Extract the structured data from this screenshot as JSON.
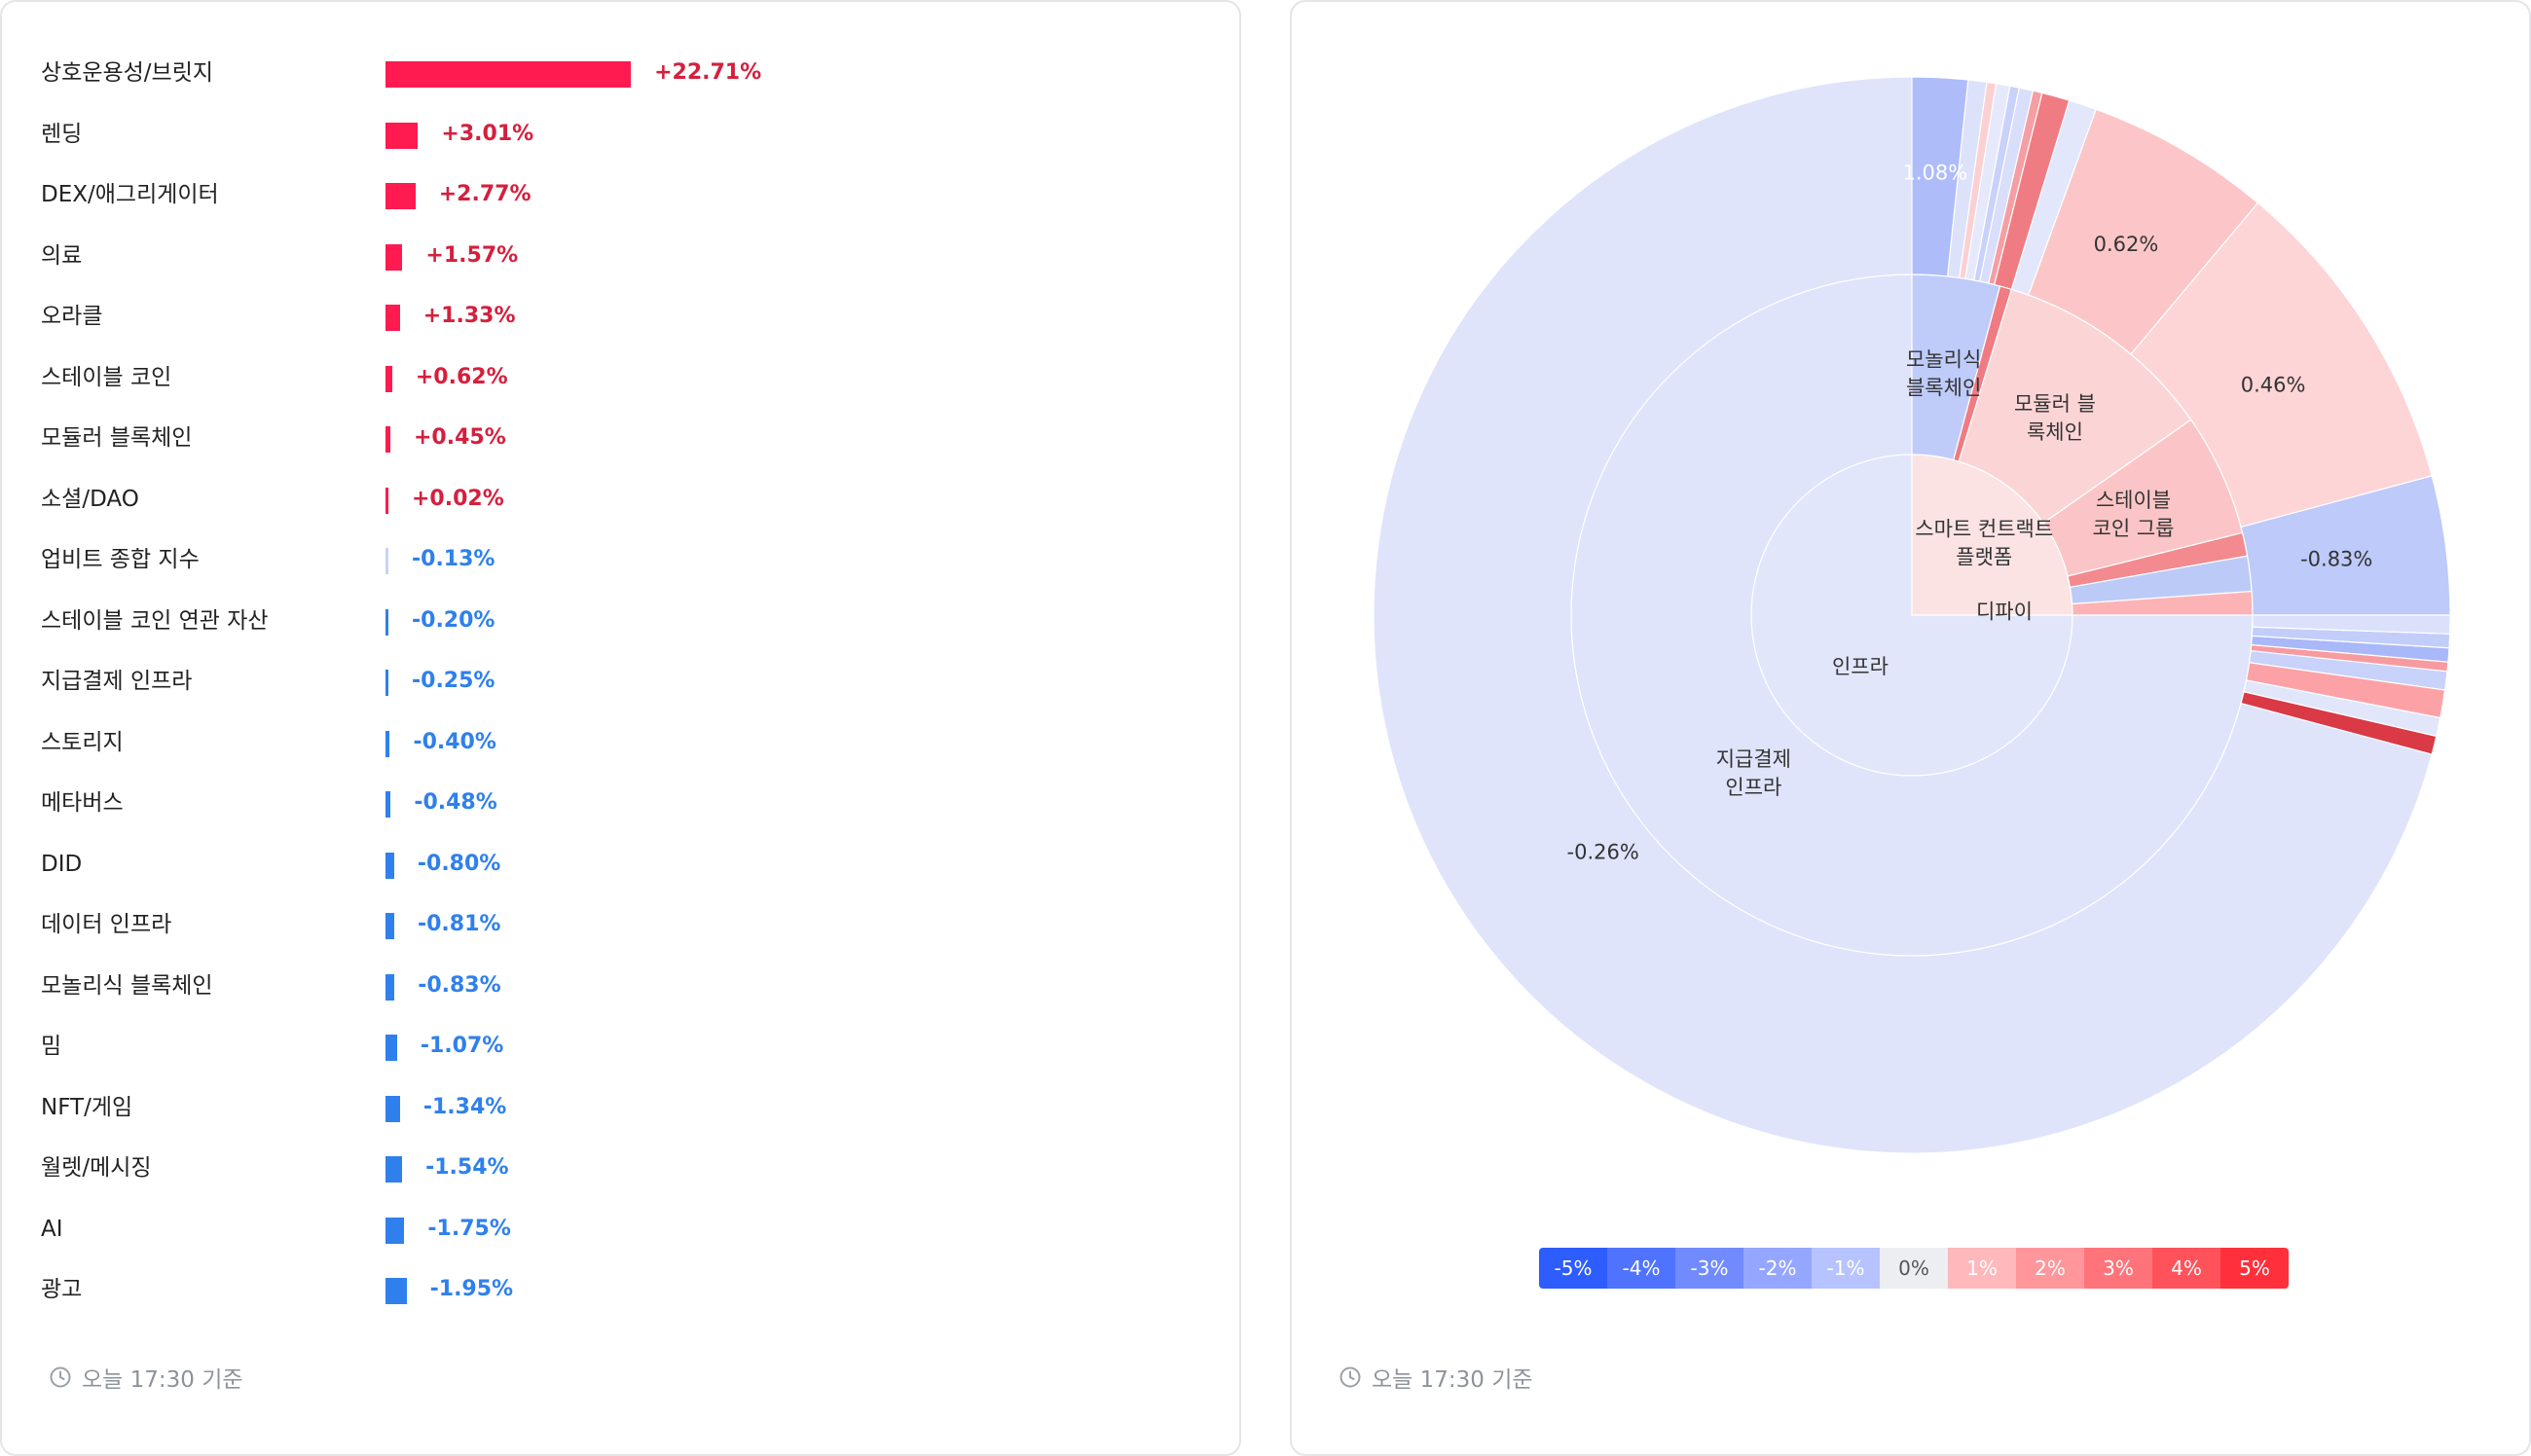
{
  "bars": [
    {
      "label": "상호운용성/브릿지",
      "value": 22.71,
      "text": "+22.71%"
    },
    {
      "label": "렌딩",
      "value": 3.01,
      "text": "+3.01%"
    },
    {
      "label": "DEX/애그리게이터",
      "value": 2.77,
      "text": "+2.77%"
    },
    {
      "label": "의료",
      "value": 1.57,
      "text": "+1.57%"
    },
    {
      "label": "오라클",
      "value": 1.33,
      "text": "+1.33%"
    },
    {
      "label": "스테이블 코인",
      "value": 0.62,
      "text": "+0.62%"
    },
    {
      "label": "모듈러 블록체인",
      "value": 0.45,
      "text": "+0.45%"
    },
    {
      "label": "소셜/DAO",
      "value": 0.02,
      "text": "+0.02%"
    },
    {
      "label": "업비트 종합 지수",
      "value": -0.13,
      "text": "-0.13%"
    },
    {
      "label": "스테이블 코인 연관 자산",
      "value": -0.2,
      "text": "-0.20%"
    },
    {
      "label": "지급결제 인프라",
      "value": -0.25,
      "text": "-0.25%"
    },
    {
      "label": "스토리지",
      "value": -0.4,
      "text": "-0.40%"
    },
    {
      "label": "메타버스",
      "value": -0.48,
      "text": "-0.48%"
    },
    {
      "label": "DID",
      "value": -0.8,
      "text": "-0.80%"
    },
    {
      "label": "데이터 인프라",
      "value": -0.81,
      "text": "-0.81%"
    },
    {
      "label": "모놀리식 블록체인",
      "value": -0.83,
      "text": "-0.83%"
    },
    {
      "label": "밈",
      "value": -1.07,
      "text": "-1.07%"
    },
    {
      "label": "NFT/게임",
      "value": -1.34,
      "text": "-1.34%"
    },
    {
      "label": "월렛/메시징",
      "value": -1.54,
      "text": "-1.54%"
    },
    {
      "label": "AI",
      "value": -1.75,
      "text": "-1.75%"
    },
    {
      "label": "광고",
      "value": -1.95,
      "text": "-1.95%"
    }
  ],
  "colors": {
    "positive_bar": "#ff1a4f",
    "positive_text": "#d61f3d",
    "negative_bar": "#2f80ed",
    "negative_text": "#2f80ed",
    "small_negative_bar": "#c8d4f5"
  },
  "left_footer": "오늘 17:30 기준",
  "right_footer": "오늘 17:30 기준",
  "legend": [
    {
      "label": "-5%",
      "color": "#2d5cff",
      "text_color": "#ffffff"
    },
    {
      "label": "-4%",
      "color": "#4f73ff",
      "text_color": "#ffffff"
    },
    {
      "label": "-3%",
      "color": "#718bff",
      "text_color": "#ffffff"
    },
    {
      "label": "-2%",
      "color": "#94a6ff",
      "text_color": "#ffffff"
    },
    {
      "label": "-1%",
      "color": "#b7c3ff",
      "text_color": "#ffffff"
    },
    {
      "label": "0%",
      "color": "#eceef2",
      "text_color": "#555555"
    },
    {
      "label": "1%",
      "color": "#ffb8bc",
      "text_color": "#ffffff"
    },
    {
      "label": "2%",
      "color": "#ff969c",
      "text_color": "#ffffff"
    },
    {
      "label": "3%",
      "color": "#ff747b",
      "text_color": "#ffffff"
    },
    {
      "label": "4%",
      "color": "#ff525b",
      "text_color": "#ffffff"
    },
    {
      "label": "5%",
      "color": "#ff303b",
      "text_color": "#ffffff"
    }
  ],
  "chart_data": [
    {
      "type": "bar",
      "categories": [
        "상호운용성/브릿지",
        "렌딩",
        "DEX/애그리게이터",
        "의료",
        "오라클",
        "스테이블 코인",
        "모듈러 블록체인",
        "소셜/DAO",
        "업비트 종합 지수",
        "스테이블 코인 연관 자산",
        "지급결제 인프라",
        "스토리지",
        "메타버스",
        "DID",
        "데이터 인프라",
        "모놀리식 블록체인",
        "밈",
        "NFT/게임",
        "월렛/메시징",
        "AI",
        "광고"
      ],
      "values": [
        22.71,
        3.01,
        2.77,
        1.57,
        1.33,
        0.62,
        0.45,
        0.02,
        -0.13,
        -0.2,
        -0.25,
        -0.4,
        -0.48,
        -0.8,
        -0.81,
        -0.83,
        -1.07,
        -1.34,
        -1.54,
        -1.75,
        -1.95
      ],
      "orientation": "horizontal"
    },
    {
      "type": "sunburst",
      "inner": [
        {
          "label": "인프라",
          "start": 90,
          "end": 360,
          "color": "#e2e6fb"
        },
        {
          "label": "스마트 컨트랙트\n플랫폼",
          "start": 0,
          "end": 90,
          "color": "#fbe3e4"
        }
      ],
      "middle": [
        {
          "label": "지급결제\n인프라",
          "start": 90,
          "end": 360,
          "color": "#dfe4fb"
        },
        {
          "label": "모놀리식\n블록체인",
          "start": 0,
          "end": 15,
          "color": "#bfccfa"
        },
        {
          "label": "",
          "start": 15,
          "end": 17,
          "color": "#f07b82"
        },
        {
          "label": "모듈러 블\n록체인",
          "start": 17,
          "end": 55,
          "color": "#fbd5d6"
        },
        {
          "label": "스테이블\n코인 그룹",
          "start": 55,
          "end": 76,
          "color": "#fbc5c7"
        },
        {
          "label": "",
          "start": 76,
          "end": 80,
          "color": "#f28a8f"
        },
        {
          "label": "",
          "start": 80,
          "end": 86,
          "color": "#bccaf8"
        },
        {
          "label": "디파이",
          "start": 86,
          "end": 90,
          "color": "#fdb3b5"
        }
      ],
      "outer": [
        {
          "label": "-0.26%",
          "start": 105,
          "end": 360,
          "color": "#dfe4fb"
        },
        {
          "label": "",
          "start": 103,
          "end": 105,
          "color": "#d93a45"
        },
        {
          "label": "",
          "start": 101,
          "end": 103,
          "color": "#e2e6fb"
        },
        {
          "label": "",
          "start": 98,
          "end": 101,
          "color": "#fca2a6"
        },
        {
          "label": "",
          "start": 96,
          "end": 98,
          "color": "#c8d2fa"
        },
        {
          "label": "",
          "start": 95,
          "end": 96,
          "color": "#f69ba0"
        },
        {
          "label": "",
          "start": 93.5,
          "end": 95,
          "color": "#a9b8f8"
        },
        {
          "label": "",
          "start": 92,
          "end": 93.5,
          "color": "#c2cdfa"
        },
        {
          "label": "",
          "start": 90,
          "end": 92,
          "color": "#dbe1fb"
        },
        {
          "label": "-0.83%",
          "start": 75,
          "end": 90,
          "color": "#bdcafa"
        },
        {
          "label": "0.46%",
          "start": 40,
          "end": 75,
          "color": "#fdd5d6"
        },
        {
          "label": "0.62%",
          "start": 20,
          "end": 40,
          "color": "#fcc6c8"
        },
        {
          "label": "",
          "start": 17,
          "end": 20,
          "color": "#e3e7fb"
        },
        {
          "label": "",
          "start": 14,
          "end": 17,
          "color": "#f07c83"
        },
        {
          "label": "",
          "start": 13,
          "end": 14,
          "color": "#f59ea3"
        },
        {
          "label": "",
          "start": 11.5,
          "end": 13,
          "color": "#d9defb"
        },
        {
          "label": "",
          "start": 10.5,
          "end": 11.5,
          "color": "#c8d2fa"
        },
        {
          "label": "",
          "start": 9,
          "end": 10.5,
          "color": "#e6e9fb"
        },
        {
          "label": "",
          "start": 8,
          "end": 9,
          "color": "#fbd0d2"
        },
        {
          "label": "",
          "start": 6,
          "end": 8,
          "color": "#dde2fb"
        },
        {
          "label": "1.08%",
          "start": 0,
          "end": 6,
          "color": "#aebcfa"
        }
      ]
    }
  ]
}
